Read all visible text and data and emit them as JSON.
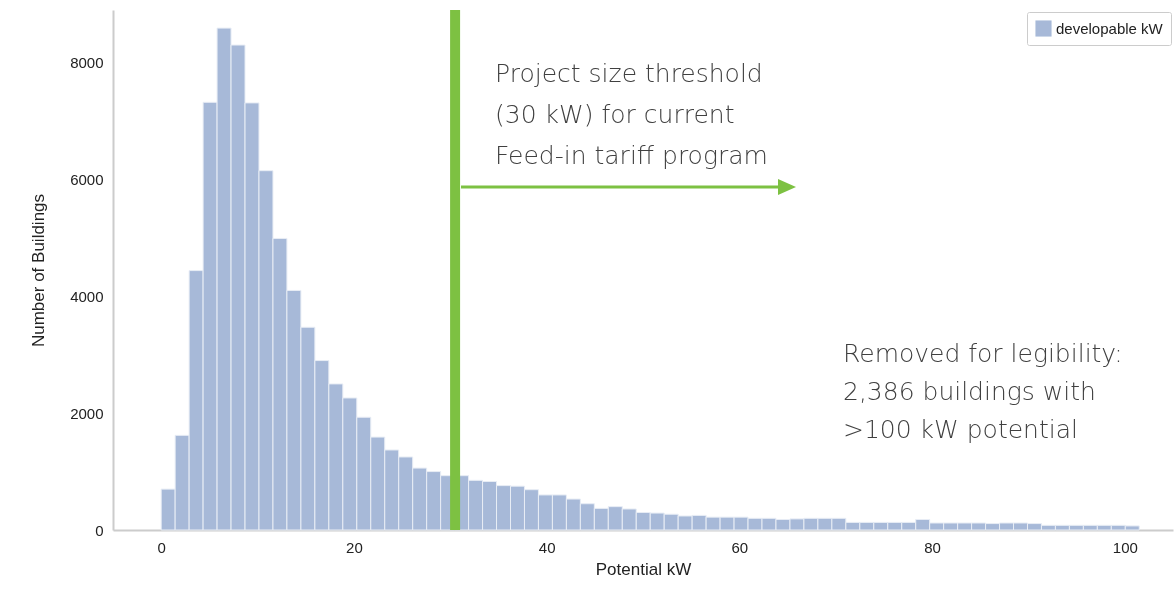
{
  "chart_data": {
    "type": "histogram",
    "xlabel": "Potential kW",
    "ylabel": "Number of Buildings",
    "bins": [
      0,
      1.45,
      2.9,
      4.35,
      5.8,
      7.25,
      8.7,
      10.15,
      11.6,
      13.05,
      14.5,
      15.95,
      17.4,
      18.85,
      20.3,
      21.75,
      23.2,
      24.65,
      26.1,
      27.55,
      29,
      30.45,
      31.9,
      33.35,
      34.8,
      36.25,
      37.7,
      39.15,
      40.6,
      42.05,
      43.5,
      44.95,
      46.4,
      47.85,
      49.3,
      50.75,
      52.2,
      53.65,
      55.1,
      56.55,
      58,
      59.45,
      60.9,
      62.35,
      63.8,
      65.25,
      66.7,
      68.15,
      69.6,
      71.05,
      72.5,
      73.95,
      75.4,
      76.85,
      78.3,
      79.75,
      81.2,
      82.65,
      84.1,
      85.55,
      87,
      88.45,
      89.9,
      91.35,
      92.8,
      94.25,
      95.7,
      97.15,
      98.6,
      100.05,
      101.5
    ],
    "series": [
      {
        "name": "developable kW",
        "color": "#a7b9d8",
        "values": [
          700,
          1620,
          4440,
          7320,
          8590,
          8300,
          7310,
          6150,
          4990,
          4100,
          3470,
          2900,
          2500,
          2260,
          1930,
          1590,
          1370,
          1250,
          1060,
          1000,
          930,
          930,
          850,
          830,
          760,
          750,
          690,
          600,
          600,
          530,
          450,
          370,
          400,
          360,
          300,
          290,
          270,
          240,
          250,
          220,
          220,
          220,
          200,
          200,
          180,
          190,
          200,
          200,
          200,
          130,
          130,
          130,
          130,
          130,
          180,
          120,
          120,
          120,
          120,
          110,
          120,
          120,
          110,
          80,
          80,
          80,
          80,
          80,
          80,
          70
        ]
      }
    ],
    "xlim": [
      -5,
      105
    ],
    "ylim": [
      0,
      8900
    ],
    "xticks": [
      0,
      20,
      40,
      60,
      80,
      100
    ],
    "yticks": [
      0,
      2000,
      4000,
      6000,
      8000
    ],
    "grid": false,
    "legend": "top right",
    "ref_lines": [
      {
        "axis": "x",
        "value": 30.5,
        "color": "#7dc142",
        "label": "Project size threshold\n(30 kW) for current\nFeed-in tariff program"
      }
    ],
    "annotations": [
      "Removed for legibility:\n\n2,386 buildings with\n>100 kW potential"
    ]
  }
}
